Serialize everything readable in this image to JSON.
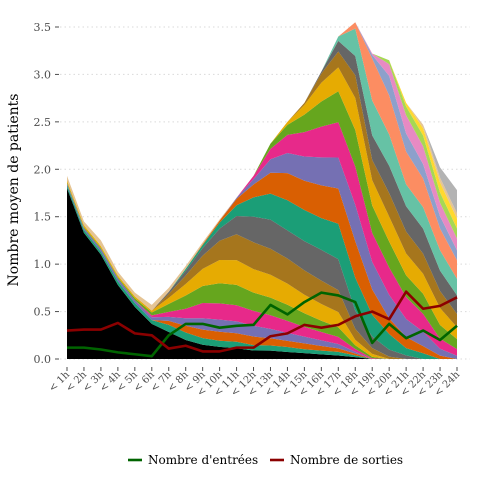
{
  "chart_data": {
    "type": "area",
    "title": "",
    "xlabel": "",
    "ylabel": "Nombre moyen de patients",
    "ylim": [
      0,
      3.6
    ],
    "yticks": [
      "0.0",
      "0.5",
      "1.0",
      "1.5",
      "2.0",
      "2.5",
      "3.0",
      "3.5"
    ],
    "grid": true,
    "legend_position": "bottom",
    "categories": [
      "< 1h",
      "< 2h",
      "< 3h",
      "< 4h",
      "< 5h",
      "< 6h",
      "< 7h",
      "< 8h",
      "< 9h",
      "< 10h",
      "< 11h",
      "< 12h",
      "< 13h",
      "< 14h",
      "< 15h",
      "< 16h",
      "< 17h",
      "< 18h",
      "< 19h",
      "< 20h",
      "< 21h",
      "< 22h",
      "< 23h",
      "< 24h"
    ],
    "total_occupancy": [
      1.93,
      1.45,
      1.25,
      0.92,
      0.7,
      0.57,
      0.75,
      0.98,
      1.23,
      1.47,
      1.7,
      1.93,
      2.27,
      2.5,
      2.7,
      3.03,
      3.4,
      3.55,
      3.22,
      3.15,
      2.7,
      2.47,
      2.02,
      1.78
    ],
    "stack_layers": [
      {
        "color": "#000000",
        "values": [
          1.8,
          1.33,
          1.1,
          0.78,
          0.55,
          0.37,
          0.27,
          0.2,
          0.15,
          0.12,
          0.1,
          0.08,
          0.08,
          0.07,
          0.06,
          0.05,
          0.04,
          0.02,
          0.0,
          0.0,
          0.0,
          0.0,
          0.0,
          0.0
        ]
      },
      {
        "color": "#1b9e77",
        "values": [
          0.03,
          0.03,
          0.03,
          0.04,
          0.04,
          0.04,
          0.07,
          0.08,
          0.07,
          0.06,
          0.06,
          0.05,
          0.05,
          0.05,
          0.04,
          0.04,
          0.04,
          0.02,
          0.0,
          0.0,
          0.0,
          0.0,
          0.0,
          0.0
        ]
      },
      {
        "color": "#d95f02",
        "values": [
          0.0,
          0.0,
          0.0,
          0.0,
          0.0,
          0.0,
          0.04,
          0.07,
          0.09,
          0.09,
          0.08,
          0.08,
          0.07,
          0.06,
          0.06,
          0.05,
          0.04,
          0.02,
          0.0,
          0.0,
          0.0,
          0.0,
          0.0,
          0.0
        ]
      },
      {
        "color": "#7570b3",
        "values": [
          0.02,
          0.02,
          0.03,
          0.03,
          0.03,
          0.03,
          0.04,
          0.08,
          0.12,
          0.12,
          0.11,
          0.1,
          0.09,
          0.08,
          0.07,
          0.06,
          0.05,
          0.02,
          0.0,
          0.0,
          0.0,
          0.0,
          0.0,
          0.0
        ]
      },
      {
        "color": "#e7298a",
        "values": [
          0.0,
          0.0,
          0.0,
          0.0,
          0.0,
          0.02,
          0.05,
          0.1,
          0.16,
          0.16,
          0.15,
          0.14,
          0.13,
          0.12,
          0.1,
          0.09,
          0.08,
          0.03,
          0.01,
          0.0,
          0.0,
          0.0,
          0.0,
          0.0
        ]
      },
      {
        "color": "#66a61e",
        "values": [
          0.01,
          0.01,
          0.01,
          0.01,
          0.02,
          0.03,
          0.08,
          0.14,
          0.18,
          0.2,
          0.19,
          0.17,
          0.17,
          0.16,
          0.14,
          0.12,
          0.11,
          0.04,
          0.02,
          0.0,
          0.0,
          0.0,
          0.0,
          0.0
        ]
      },
      {
        "color": "#e6ab02",
        "values": [
          0.02,
          0.02,
          0.02,
          0.02,
          0.02,
          0.02,
          0.06,
          0.12,
          0.18,
          0.23,
          0.23,
          0.22,
          0.22,
          0.21,
          0.19,
          0.18,
          0.17,
          0.06,
          0.04,
          0.0,
          0.0,
          0.0,
          0.0,
          0.0
        ]
      },
      {
        "color": "#a6761d",
        "values": [
          0.0,
          0.0,
          0.0,
          0.0,
          0.0,
          0.0,
          0.04,
          0.09,
          0.14,
          0.19,
          0.24,
          0.25,
          0.25,
          0.25,
          0.25,
          0.25,
          0.25,
          0.12,
          0.08,
          0.03,
          0.0,
          0.0,
          0.0,
          0.0
        ]
      },
      {
        "color": "#666666",
        "values": [
          0.0,
          0.0,
          0.0,
          0.0,
          0.0,
          0.0,
          0.02,
          0.05,
          0.08,
          0.12,
          0.17,
          0.24,
          0.28,
          0.28,
          0.3,
          0.33,
          0.35,
          0.2,
          0.16,
          0.09,
          0.05,
          0.0,
          0.0,
          0.0
        ]
      },
      {
        "color": "#1b9e77",
        "values": [
          0.0,
          0.0,
          0.0,
          0.0,
          0.0,
          0.0,
          0.0,
          0.02,
          0.03,
          0.06,
          0.1,
          0.18,
          0.25,
          0.3,
          0.32,
          0.34,
          0.4,
          0.36,
          0.3,
          0.2,
          0.1,
          0.08,
          0.0,
          0.0
        ]
      },
      {
        "color": "#d95f02",
        "values": [
          0.0,
          0.0,
          0.0,
          0.0,
          0.0,
          0.0,
          0.0,
          0.0,
          0.01,
          0.02,
          0.06,
          0.12,
          0.2,
          0.27,
          0.3,
          0.35,
          0.4,
          0.4,
          0.35,
          0.2,
          0.15,
          0.1,
          0.05,
          0.0
        ]
      },
      {
        "color": "#7570b3",
        "values": [
          0.0,
          0.0,
          0.0,
          0.0,
          0.0,
          0.0,
          0.0,
          0.0,
          0.0,
          0.0,
          0.01,
          0.05,
          0.13,
          0.2,
          0.25,
          0.3,
          0.35,
          0.4,
          0.38,
          0.3,
          0.25,
          0.2,
          0.1,
          0.05
        ]
      },
      {
        "color": "#e7298a",
        "values": [
          0.0,
          0.0,
          0.0,
          0.0,
          0.0,
          0.0,
          0.0,
          0.0,
          0.0,
          0.0,
          0.0,
          0.03,
          0.1,
          0.18,
          0.25,
          0.33,
          0.4,
          0.42,
          0.4,
          0.35,
          0.3,
          0.25,
          0.15,
          0.1
        ]
      },
      {
        "color": "#66a61e",
        "values": [
          0.0,
          0.0,
          0.0,
          0.0,
          0.0,
          0.0,
          0.0,
          0.0,
          0.0,
          0.0,
          0.0,
          0.0,
          0.05,
          0.1,
          0.18,
          0.27,
          0.35,
          0.4,
          0.38,
          0.33,
          0.3,
          0.28,
          0.2,
          0.15
        ]
      },
      {
        "color": "#e6ab02",
        "values": [
          0.0,
          0.0,
          0.0,
          0.0,
          0.0,
          0.0,
          0.0,
          0.0,
          0.0,
          0.0,
          0.0,
          0.0,
          0.0,
          0.03,
          0.1,
          0.2,
          0.27,
          0.35,
          0.35,
          0.32,
          0.3,
          0.28,
          0.25,
          0.18
        ]
      },
      {
        "color": "#a6761d",
        "values": [
          0.0,
          0.0,
          0.0,
          0.0,
          0.0,
          0.0,
          0.0,
          0.0,
          0.0,
          0.0,
          0.0,
          0.0,
          0.0,
          0.0,
          0.02,
          0.1,
          0.18,
          0.25,
          0.28,
          0.3,
          0.3,
          0.28,
          0.25,
          0.2
        ]
      },
      {
        "color": "#666666",
        "values": [
          0.0,
          0.0,
          0.0,
          0.0,
          0.0,
          0.0,
          0.0,
          0.0,
          0.0,
          0.0,
          0.0,
          0.0,
          0.0,
          0.0,
          0.0,
          0.02,
          0.12,
          0.21,
          0.34,
          0.35,
          0.35,
          0.35,
          0.3,
          0.28
        ]
      },
      {
        "color": "#66c2a5",
        "values": [
          0.0,
          0.0,
          0.0,
          0.0,
          0.0,
          0.0,
          0.0,
          0.0,
          0.0,
          0.0,
          0.0,
          0.0,
          0.0,
          0.0,
          0.0,
          0.0,
          0.05,
          0.3,
          0.48,
          0.4,
          0.3,
          0.3,
          0.3,
          0.25
        ]
      },
      {
        "color": "#fc8d62",
        "values": [
          0.0,
          0.0,
          0.0,
          0.0,
          0.0,
          0.0,
          0.0,
          0.0,
          0.0,
          0.0,
          0.0,
          0.0,
          0.0,
          0.0,
          0.0,
          0.0,
          0.0,
          0.07,
          0.58,
          0.5,
          0.45,
          0.4,
          0.32,
          0.28
        ]
      },
      {
        "color": "#8da0cb",
        "values": [
          0.0,
          0.0,
          0.0,
          0.0,
          0.0,
          0.0,
          0.0,
          0.0,
          0.0,
          0.0,
          0.0,
          0.0,
          0.0,
          0.0,
          0.0,
          0.0,
          0.0,
          0.0,
          0.05,
          0.25,
          0.25,
          0.2,
          0.18,
          0.15
        ]
      },
      {
        "color": "#e78ac3",
        "values": [
          0.0,
          0.0,
          0.0,
          0.0,
          0.0,
          0.0,
          0.0,
          0.0,
          0.0,
          0.0,
          0.0,
          0.0,
          0.0,
          0.0,
          0.0,
          0.0,
          0.0,
          0.0,
          0.02,
          0.15,
          0.25,
          0.25,
          0.2,
          0.18
        ]
      },
      {
        "color": "#a6d854",
        "values": [
          0.0,
          0.0,
          0.0,
          0.0,
          0.0,
          0.0,
          0.0,
          0.0,
          0.0,
          0.0,
          0.0,
          0.0,
          0.0,
          0.0,
          0.0,
          0.0,
          0.0,
          0.0,
          0.0,
          0.05,
          0.12,
          0.15,
          0.15,
          0.15
        ]
      },
      {
        "color": "#ffd92f",
        "values": [
          0.0,
          0.0,
          0.0,
          0.0,
          0.0,
          0.0,
          0.0,
          0.0,
          0.0,
          0.0,
          0.0,
          0.0,
          0.0,
          0.0,
          0.0,
          0.0,
          0.0,
          0.0,
          0.0,
          0.0,
          0.05,
          0.1,
          0.15,
          0.15
        ]
      },
      {
        "color": "#e5c494",
        "values": [
          0.05,
          0.04,
          0.06,
          0.04,
          0.04,
          0.06,
          0.04,
          0.03,
          0.02,
          0.01,
          0.0,
          0.0,
          0.0,
          0.0,
          0.0,
          0.0,
          0.0,
          0.0,
          0.0,
          0.0,
          0.0,
          0.05,
          0.07,
          0.08
        ]
      },
      {
        "color": "#b3b3b3",
        "values": [
          0.0,
          0.0,
          0.0,
          0.0,
          0.0,
          0.0,
          0.0,
          0.0,
          0.0,
          0.0,
          0.0,
          0.0,
          0.0,
          0.0,
          0.0,
          0.0,
          0.0,
          0.0,
          0.0,
          0.0,
          0.0,
          0.0,
          0.15,
          0.35
        ]
      }
    ],
    "series": [
      {
        "name": "Nombre d'entrées",
        "color": "#006400",
        "values": [
          0.12,
          0.12,
          0.1,
          0.07,
          0.05,
          0.03,
          0.25,
          0.37,
          0.37,
          0.33,
          0.35,
          0.36,
          0.57,
          0.47,
          0.6,
          0.7,
          0.67,
          0.6,
          0.17,
          0.37,
          0.22,
          0.3,
          0.2,
          0.35
        ]
      },
      {
        "name": "Nombre de sorties",
        "color": "#8b0000",
        "values": [
          0.3,
          0.31,
          0.31,
          0.38,
          0.27,
          0.25,
          0.11,
          0.14,
          0.08,
          0.08,
          0.12,
          0.12,
          0.24,
          0.27,
          0.36,
          0.33,
          0.36,
          0.45,
          0.5,
          0.42,
          0.71,
          0.53,
          0.56,
          0.65
        ]
      }
    ]
  }
}
